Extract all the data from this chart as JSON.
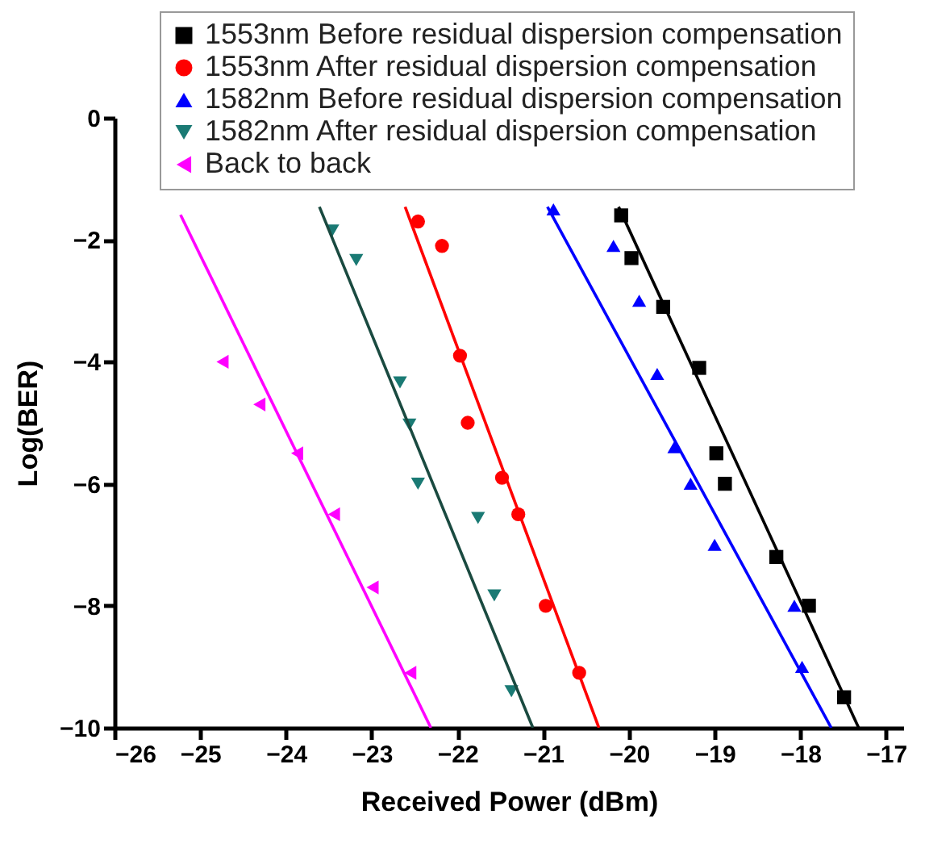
{
  "chart_data": {
    "type": "scatter",
    "xlabel": "Received Power (dBm)",
    "ylabel": "Log(BER)",
    "xlim": [
      -26,
      -16.8
    ],
    "xticks": [
      -26,
      -25,
      -24,
      -23,
      -22,
      -21,
      -20,
      -19,
      -18,
      -17
    ],
    "ylim": [
      -10,
      0
    ],
    "yticks": [
      0,
      -2,
      -4,
      -6,
      -8,
      -10
    ],
    "grid": false,
    "legend": "top",
    "series": [
      {
        "name": "1553nm Before residual dispersion compensation",
        "color": "#000000",
        "marker": "square",
        "x": [
          -20.09,
          -19.97,
          -19.6,
          -19.18,
          -18.98,
          -18.88,
          -18.28,
          -17.9,
          -17.49
        ],
        "values": [
          -1.6,
          -2.3,
          -3.1,
          -4.1,
          -5.5,
          -6.0,
          -7.2,
          -8.0,
          -9.5
        ]
      },
      {
        "name": "1553nm After residual dispersion compensation",
        "color": "#ff0000",
        "marker": "circle",
        "x": [
          -22.46,
          -22.18,
          -21.97,
          -21.88,
          -21.48,
          -21.29,
          -20.97,
          -20.58
        ],
        "values": [
          -1.7,
          -2.1,
          -3.9,
          -5.0,
          -5.9,
          -6.5,
          -8.0,
          -9.1
        ]
      },
      {
        "name": "1582nm Before residual dispersion compensation",
        "color": "#0000ff",
        "marker": "triangle",
        "x": [
          -20.88,
          -20.18,
          -19.88,
          -19.67,
          -19.47,
          -19.28,
          -19.0,
          -18.07,
          -17.98
        ],
        "values": [
          -1.5,
          -2.1,
          -3.0,
          -4.2,
          -5.4,
          -6.0,
          -7.0,
          -8.0,
          -9.0
        ]
      },
      {
        "name": "1582nm After residual dispersion compensation",
        "color": "#1a7a74",
        "marker": "triangle-down",
        "x": [
          -23.46,
          -23.18,
          -22.67,
          -22.56,
          -22.46,
          -21.76,
          -21.57,
          -21.37
        ],
        "values": [
          -1.85,
          -2.33,
          -4.34,
          -5.03,
          -6.0,
          -6.56,
          -7.83,
          -9.4
        ]
      },
      {
        "name": "Back to back",
        "color": "#ff00ff",
        "marker": "triangle-left",
        "x": [
          -24.74,
          -24.31,
          -23.87,
          -23.44,
          -22.99,
          -22.55
        ],
        "values": [
          -4.0,
          -4.7,
          -5.5,
          -6.5,
          -7.7,
          -9.1
        ]
      },
      {
        "type": "line",
        "color": "#000000",
        "x": [
          -20.12,
          -17.32
        ],
        "values": [
          -1.46,
          -10
        ]
      },
      {
        "type": "line",
        "color": "#ff0000",
        "x": [
          -22.61,
          -20.35
        ],
        "values": [
          -1.46,
          -10
        ]
      },
      {
        "type": "line",
        "color": "#0000ff",
        "x": [
          -20.95,
          -17.64
        ],
        "values": [
          -1.46,
          -10
        ]
      },
      {
        "type": "line",
        "color": "#1a4a40",
        "x": [
          -23.61,
          -21.12
        ],
        "values": [
          -1.46,
          -10
        ]
      },
      {
        "type": "line",
        "color": "#ff00ff",
        "x": [
          -25.23,
          -22.31
        ],
        "values": [
          -1.59,
          -10
        ]
      }
    ]
  }
}
